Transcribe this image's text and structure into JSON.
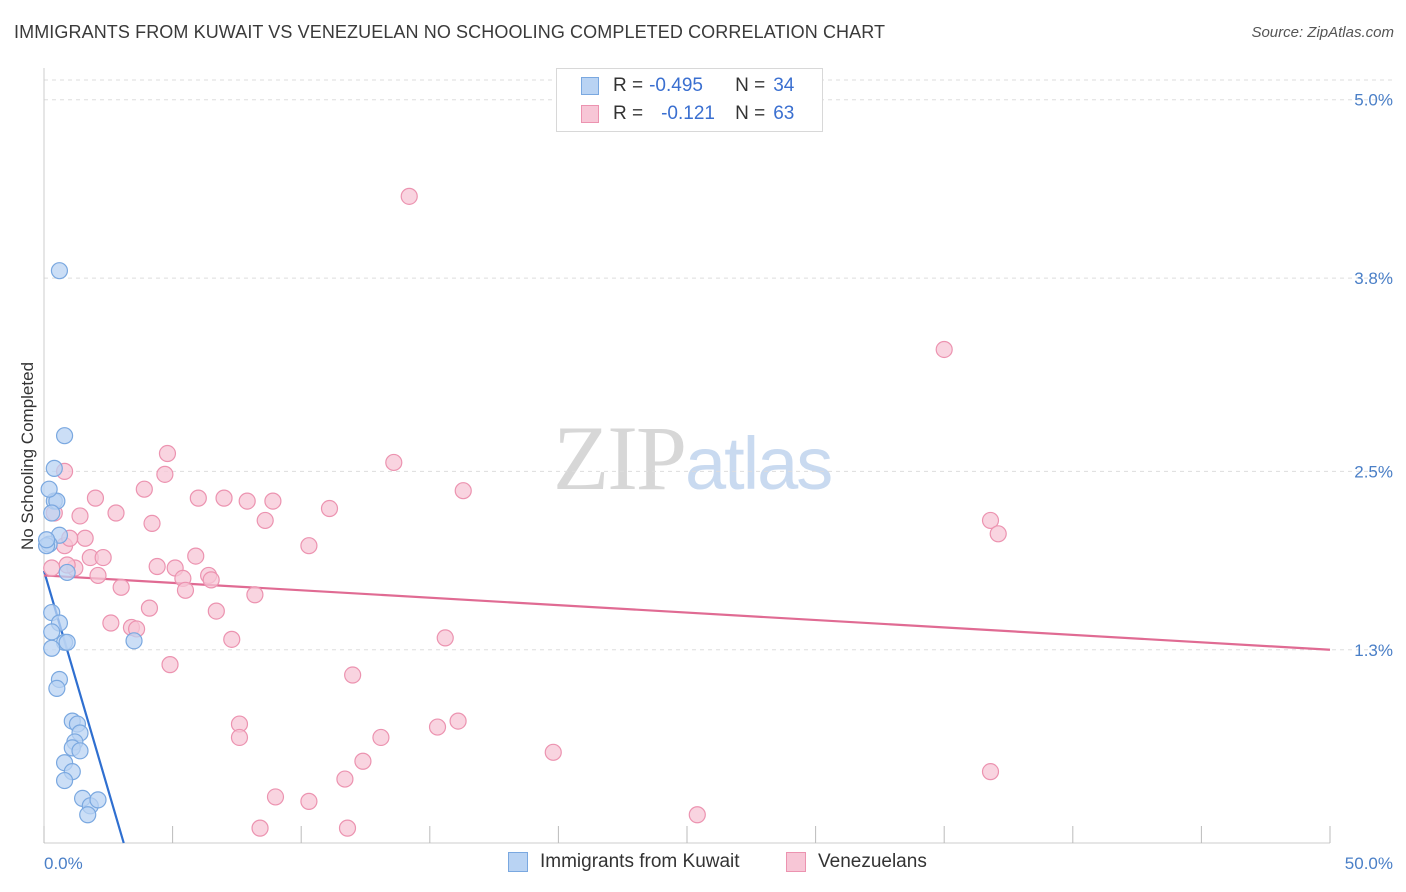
{
  "title": "IMMIGRANTS FROM KUWAIT VS VENEZUELAN NO SCHOOLING COMPLETED CORRELATION CHART",
  "source": "Source: ZipAtlas.com",
  "watermark": {
    "zip": "ZIP",
    "atlas": "atlas"
  },
  "colors": {
    "blue_fill": "#b9d3f3",
    "blue_stroke": "#7aa8e0",
    "blue_line": "#2f6fd0",
    "pink_fill": "#f7c6d6",
    "pink_stroke": "#ec93b0",
    "pink_line": "#e06b93",
    "tick_text": "#4a7fc7",
    "grid": "#dddddd"
  },
  "legend": {
    "rows": [
      {
        "r_label": "R =",
        "r_value": "-0.495",
        "n_label": "N =",
        "n_value": "34"
      },
      {
        "r_label": "R =",
        "r_value": "-0.121",
        "n_label": "N =",
        "n_value": "63"
      }
    ]
  },
  "chart_data": {
    "type": "scatter",
    "title": "IMMIGRANTS FROM KUWAIT VS VENEZUELAN NO SCHOOLING COMPLETED CORRELATION CHART",
    "xlabel": "",
    "ylabel": "No Schooling Completed",
    "xlim": [
      0,
      50
    ],
    "ylim": [
      0,
      5.2
    ],
    "x_tick_labels": [
      "0.0%",
      "50.0%"
    ],
    "y_ticks": [
      1.3,
      2.5,
      3.8,
      5.0
    ],
    "y_tick_labels": [
      "1.3%",
      "2.5%",
      "3.8%",
      "5.0%"
    ],
    "series": [
      {
        "name": "Immigrants from Kuwait",
        "color": "blue",
        "points": [
          [
            0.6,
            3.85
          ],
          [
            0.8,
            2.74
          ],
          [
            0.4,
            2.52
          ],
          [
            0.4,
            2.3
          ],
          [
            0.5,
            2.3
          ],
          [
            0.2,
            2.38
          ],
          [
            0.6,
            2.07
          ],
          [
            0.2,
            2.01
          ],
          [
            0.1,
            2.0
          ],
          [
            0.9,
            1.82
          ],
          [
            0.3,
            1.55
          ],
          [
            0.6,
            1.48
          ],
          [
            0.3,
            1.42
          ],
          [
            0.8,
            1.35
          ],
          [
            0.9,
            1.35
          ],
          [
            3.5,
            1.36
          ],
          [
            0.3,
            1.31
          ],
          [
            0.6,
            1.1
          ],
          [
            0.5,
            1.04
          ],
          [
            1.1,
            0.82
          ],
          [
            1.3,
            0.8
          ],
          [
            1.4,
            0.74
          ],
          [
            1.2,
            0.68
          ],
          [
            1.1,
            0.64
          ],
          [
            1.4,
            0.62
          ],
          [
            0.8,
            0.54
          ],
          [
            1.1,
            0.48
          ],
          [
            0.8,
            0.42
          ],
          [
            1.5,
            0.3
          ],
          [
            1.8,
            0.25
          ],
          [
            2.1,
            0.29
          ],
          [
            1.7,
            0.19
          ],
          [
            0.1,
            2.04
          ],
          [
            0.3,
            2.22
          ]
        ],
        "trend": {
          "x": [
            0.0,
            3.1
          ],
          "y": [
            1.83,
            0.0
          ]
        }
      },
      {
        "name": "Venezuelans",
        "color": "pink",
        "points": [
          [
            14.2,
            4.35
          ],
          [
            35.0,
            3.32
          ],
          [
            13.6,
            2.56
          ],
          [
            4.8,
            2.62
          ],
          [
            0.8,
            2.5
          ],
          [
            4.7,
            2.48
          ],
          [
            2.0,
            2.32
          ],
          [
            3.9,
            2.38
          ],
          [
            6.0,
            2.32
          ],
          [
            7.0,
            2.32
          ],
          [
            7.9,
            2.3
          ],
          [
            8.9,
            2.3
          ],
          [
            11.1,
            2.25
          ],
          [
            16.3,
            2.37
          ],
          [
            2.8,
            2.22
          ],
          [
            1.4,
            2.2
          ],
          [
            4.2,
            2.15
          ],
          [
            8.6,
            2.17
          ],
          [
            10.3,
            2.0
          ],
          [
            1.6,
            2.05
          ],
          [
            0.8,
            2.0
          ],
          [
            1.8,
            1.92
          ],
          [
            2.3,
            1.92
          ],
          [
            5.9,
            1.93
          ],
          [
            4.4,
            1.86
          ],
          [
            5.1,
            1.85
          ],
          [
            1.2,
            1.85
          ],
          [
            0.9,
            1.87
          ],
          [
            0.3,
            1.85
          ],
          [
            2.1,
            1.8
          ],
          [
            6.4,
            1.8
          ],
          [
            6.5,
            1.77
          ],
          [
            5.4,
            1.78
          ],
          [
            5.5,
            1.7
          ],
          [
            3.0,
            1.72
          ],
          [
            8.2,
            1.67
          ],
          [
            4.1,
            1.58
          ],
          [
            6.7,
            1.56
          ],
          [
            2.6,
            1.48
          ],
          [
            3.4,
            1.45
          ],
          [
            3.6,
            1.44
          ],
          [
            15.6,
            1.38
          ],
          [
            7.3,
            1.37
          ],
          [
            4.9,
            1.2
          ],
          [
            12.0,
            1.13
          ],
          [
            36.8,
            2.17
          ],
          [
            37.1,
            2.08
          ],
          [
            7.6,
            0.8
          ],
          [
            7.6,
            0.71
          ],
          [
            16.1,
            0.82
          ],
          [
            15.3,
            0.78
          ],
          [
            13.1,
            0.71
          ],
          [
            19.8,
            0.61
          ],
          [
            12.4,
            0.55
          ],
          [
            11.7,
            0.43
          ],
          [
            9.0,
            0.31
          ],
          [
            10.3,
            0.28
          ],
          [
            36.8,
            0.48
          ],
          [
            25.4,
            0.19
          ],
          [
            8.4,
            0.1
          ],
          [
            11.8,
            0.1
          ],
          [
            0.4,
            2.22
          ],
          [
            1.0,
            2.05
          ]
        ],
        "trend": {
          "x": [
            0.0,
            50.0
          ],
          "y": [
            1.8,
            1.3
          ]
        }
      }
    ],
    "legend_position": "top-center",
    "grid": true
  },
  "bottom_legend": [
    {
      "label": "Immigrants from Kuwait"
    },
    {
      "label": "Venezuelans"
    }
  ]
}
